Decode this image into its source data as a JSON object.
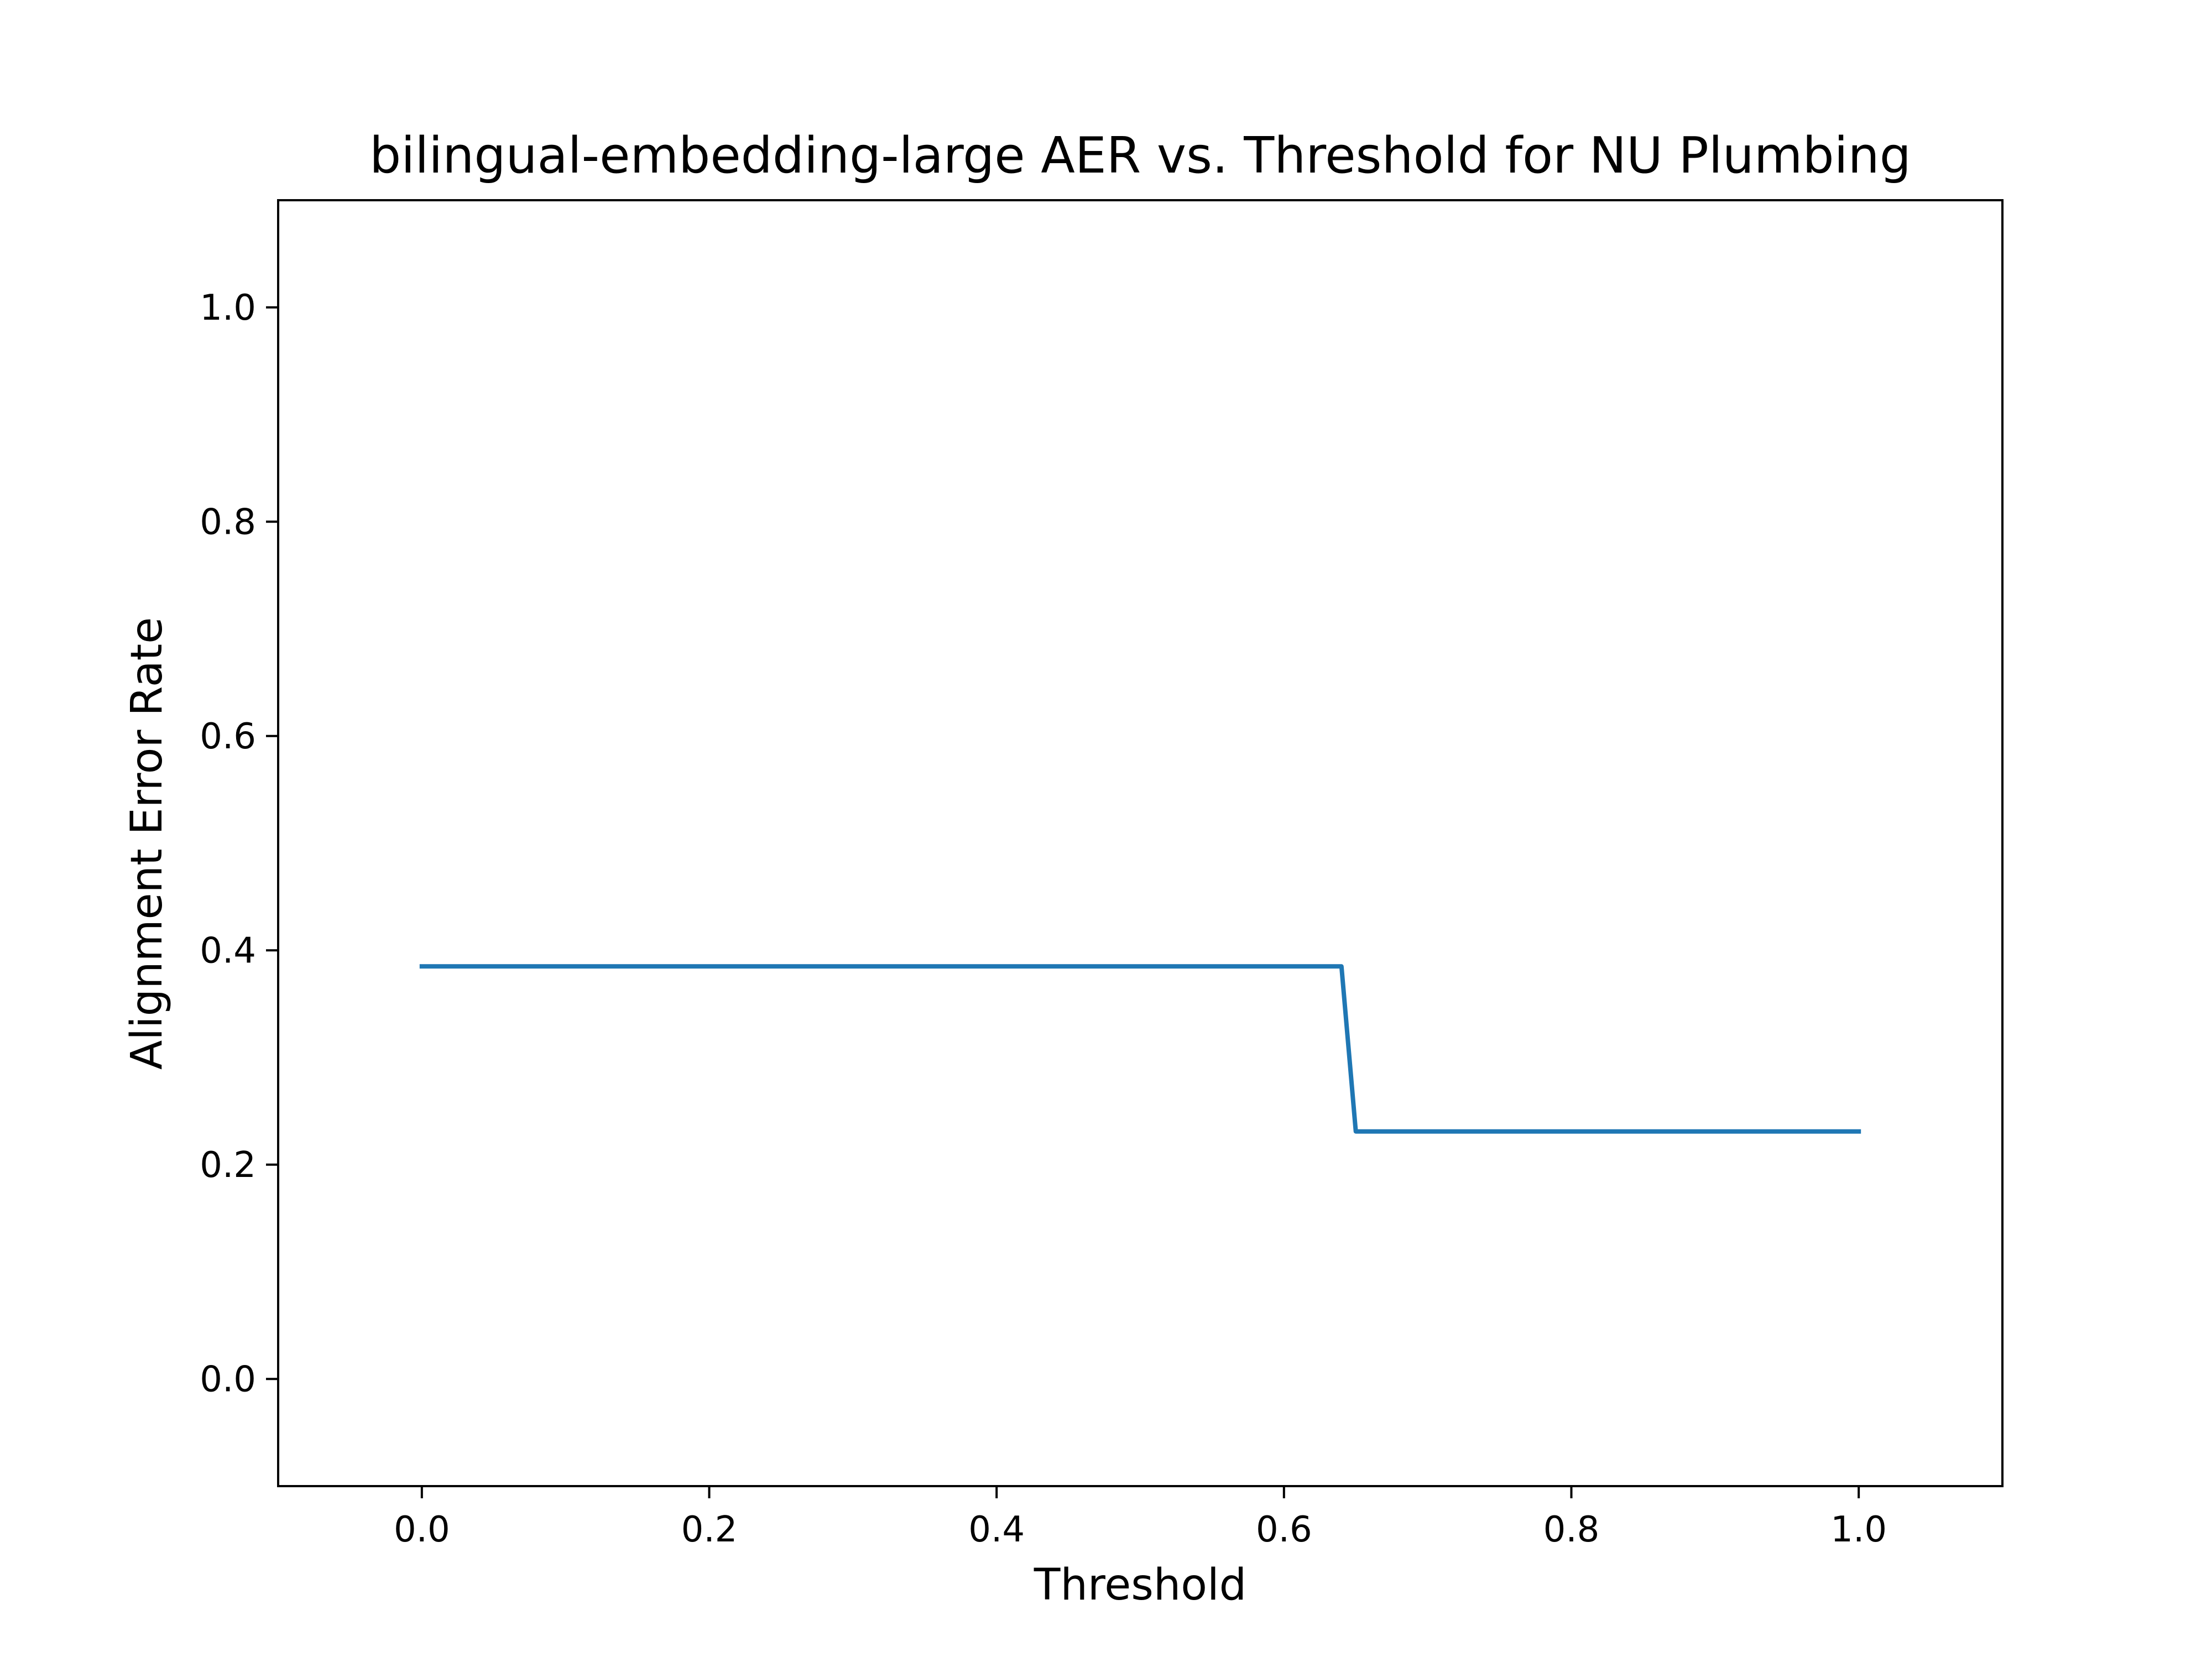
{
  "chart_data": {
    "type": "line",
    "title": "bilingual-embedding-large AER vs. Threshold for NU Plumbing",
    "xlabel": "Threshold",
    "ylabel": "Alignment Error Rate",
    "xlim": [
      -0.1,
      1.1
    ],
    "ylim": [
      -0.1,
      1.1
    ],
    "x_ticks": [
      0.0,
      0.2,
      0.4,
      0.6,
      0.8,
      1.0
    ],
    "y_ticks": [
      0.0,
      0.2,
      0.4,
      0.6,
      0.8,
      1.0
    ],
    "x_tick_labels": [
      "0.0",
      "0.2",
      "0.4",
      "0.6",
      "0.8",
      "1.0"
    ],
    "y_tick_labels": [
      "0.0",
      "0.2",
      "0.4",
      "0.6",
      "0.8",
      "1.0"
    ],
    "grid": false,
    "legend": "none",
    "series": [
      {
        "color": "#1f77b4",
        "x": [
          0.0,
          0.64,
          0.65,
          1.0
        ],
        "y": [
          0.385,
          0.385,
          0.231,
          0.231
        ]
      }
    ]
  }
}
